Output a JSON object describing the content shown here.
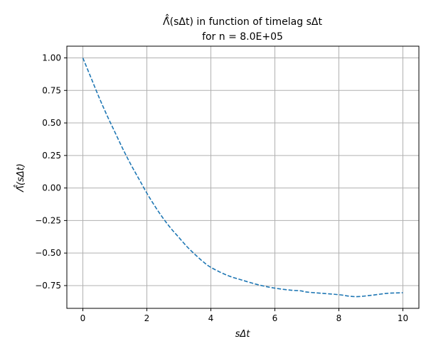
{
  "chart_data": {
    "type": "line",
    "title_line1": "Λ̂̂(sΔt) in function of timelag sΔt",
    "title_line2": "for n = 8.0E+05",
    "xlabel": "sΔt",
    "ylabel": "Λ̂̂(sΔt)",
    "xlim": [
      -0.5,
      10.5
    ],
    "ylim": [
      -0.925,
      1.09
    ],
    "xticks": [
      0,
      2,
      4,
      6,
      8,
      10
    ],
    "xtick_labels": [
      "0",
      "2",
      "4",
      "6",
      "8",
      "10"
    ],
    "yticks": [
      1.0,
      0.75,
      0.5,
      0.25,
      0.0,
      -0.25,
      -0.5,
      -0.75
    ],
    "ytick_labels": [
      "1.00",
      "0.75",
      "0.50",
      "0.25",
      "0.00",
      "−0.25",
      "−0.50",
      "−0.75"
    ],
    "grid": true,
    "line_style": "dashed",
    "color": "#1f77b4",
    "series": [
      {
        "x": [
          0,
          0.25,
          0.5,
          0.75,
          1.0,
          1.25,
          1.5,
          1.75,
          2.0,
          2.25,
          2.5,
          2.75,
          3.0,
          3.25,
          3.5,
          3.75,
          4.0,
          4.5,
          5.0,
          5.5,
          6.0,
          6.5,
          6.8,
          7.0,
          7.5,
          8.0,
          8.5,
          9.0,
          9.5,
          10.0
        ],
        "y": [
          1.0,
          0.85,
          0.7,
          0.56,
          0.43,
          0.3,
          0.18,
          0.07,
          -0.04,
          -0.14,
          -0.23,
          -0.31,
          -0.38,
          -0.45,
          -0.51,
          -0.565,
          -0.61,
          -0.67,
          -0.71,
          -0.745,
          -0.77,
          -0.785,
          -0.79,
          -0.8,
          -0.81,
          -0.82,
          -0.835,
          -0.825,
          -0.81,
          -0.805
        ]
      }
    ]
  }
}
